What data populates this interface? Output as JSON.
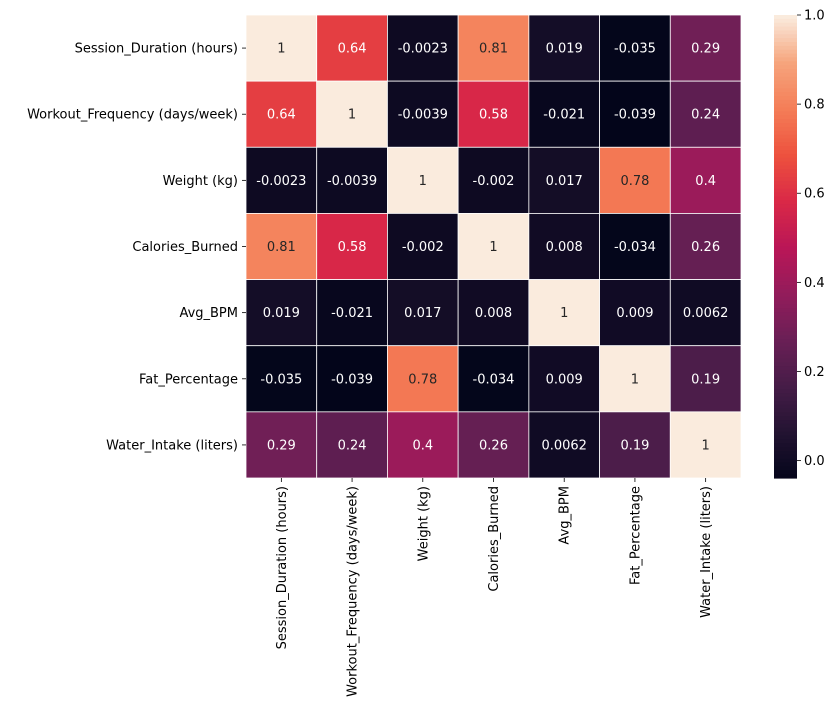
{
  "chart_data": {
    "type": "heatmap",
    "title": "",
    "xlabel": "",
    "ylabel": "",
    "labels": [
      "Session_Duration (hours)",
      "Workout_Frequency (days/week)",
      "Weight (kg)",
      "Calories_Burned",
      "Avg_BPM",
      "Fat_Percentage",
      "Water_Intake (liters)"
    ],
    "values": [
      [
        "1",
        "0.64",
        "-0.0023",
        "0.81",
        "0.019",
        "-0.035",
        "0.29"
      ],
      [
        "0.64",
        "1",
        "-0.0039",
        "0.58",
        "-0.021",
        "-0.039",
        "0.24"
      ],
      [
        "-0.0023",
        "-0.0039",
        "1",
        "-0.002",
        "0.017",
        "0.78",
        "0.4"
      ],
      [
        "0.81",
        "0.58",
        "-0.002",
        "1",
        "0.008",
        "-0.034",
        "0.26"
      ],
      [
        "0.019",
        "-0.021",
        "0.017",
        "0.008",
        "1",
        "0.009",
        "0.0062"
      ],
      [
        "-0.035",
        "-0.039",
        "0.78",
        "-0.034",
        "0.009",
        "1",
        "0.19"
      ],
      [
        "0.29",
        "0.24",
        "0.4",
        "0.26",
        "0.0062",
        "0.19",
        "1"
      ]
    ],
    "colormap": "rocket",
    "vmin": -0.039,
    "vmax": 1,
    "colorbar_ticks": [
      "0.0",
      "0.2",
      "0.4",
      "0.6",
      "0.8",
      "1.0"
    ],
    "annotated": true,
    "grid_lines_color": "#ffffff"
  }
}
